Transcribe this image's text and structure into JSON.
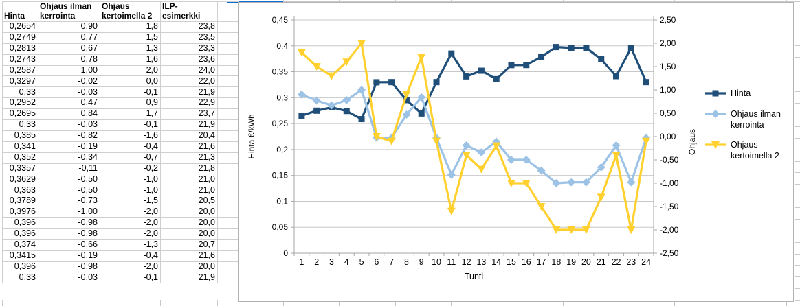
{
  "app": {
    "kind": "spreadsheet-with-embedded-chart"
  },
  "sheet": {
    "grid_color": "#c9c9c9",
    "cursor_color": "#0a6cce"
  },
  "table": {
    "headers": [
      "Hinta",
      "Ohjaus ilman kerrointa",
      "Ohjaus kertoimella 2",
      "ILP-esimerkki"
    ],
    "rows": [
      [
        "0,2654",
        "0,90",
        "1,8",
        "23,8"
      ],
      [
        "0,2749",
        "0,77",
        "1,5",
        "23,5"
      ],
      [
        "0,2813",
        "0,67",
        "1,3",
        "23,3"
      ],
      [
        "0,2743",
        "0,78",
        "1,6",
        "23,6"
      ],
      [
        "0,2587",
        "1,00",
        "2,0",
        "24,0"
      ],
      [
        "0,3297",
        "-0,02",
        "0,0",
        "22,0"
      ],
      [
        "0,33",
        "-0,03",
        "-0,1",
        "21,9"
      ],
      [
        "0,2952",
        "0,47",
        "0,9",
        "22,9"
      ],
      [
        "0,2695",
        "0,84",
        "1,7",
        "23,7"
      ],
      [
        "0,33",
        "-0,03",
        "-0,1",
        "21,9"
      ],
      [
        "0,385",
        "-0,82",
        "-1,6",
        "20,4"
      ],
      [
        "0,341",
        "-0,19",
        "-0,4",
        "21,6"
      ],
      [
        "0,352",
        "-0,34",
        "-0,7",
        "21,3"
      ],
      [
        "0,3357",
        "-0,11",
        "-0,2",
        "21,8"
      ],
      [
        "0,3629",
        "-0,50",
        "-1,0",
        "21,0"
      ],
      [
        "0,363",
        "-0,50",
        "-1,0",
        "21,0"
      ],
      [
        "0,3789",
        "-0,73",
        "-1,5",
        "20,5"
      ],
      [
        "0,3976",
        "-1,00",
        "-2,0",
        "20,0"
      ],
      [
        "0,396",
        "-0,98",
        "-2,0",
        "20,0"
      ],
      [
        "0,396",
        "-0,98",
        "-2,0",
        "20,0"
      ],
      [
        "0,374",
        "-0,66",
        "-1,3",
        "20,7"
      ],
      [
        "0,3415",
        "-0,19",
        "-0,4",
        "21,6"
      ],
      [
        "0,396",
        "-0,98",
        "-2,0",
        "20,0"
      ],
      [
        "0,33",
        "-0,03",
        "-0,1",
        "21,9"
      ]
    ]
  },
  "chart_data": {
    "type": "line",
    "xlabel": "Tunti",
    "ylabel_left": "Hinta €/kWh",
    "ylabel_right": "Ohjaus",
    "categories": [
      1,
      2,
      3,
      4,
      5,
      6,
      7,
      8,
      9,
      10,
      11,
      12,
      13,
      14,
      15,
      16,
      17,
      18,
      19,
      20,
      21,
      22,
      23,
      24
    ],
    "axis_left": {
      "min": 0,
      "max": 0.45,
      "step": 0.05,
      "tick_labels": [
        "0",
        "0,05",
        "0,1",
        "0,15",
        "0,2",
        "0,25",
        "0,3",
        "0,35",
        "0,4",
        "0,45"
      ]
    },
    "axis_right": {
      "min": -2.5,
      "max": 2.5,
      "step": 0.5,
      "tick_labels": [
        "-2,50",
        "-2,00",
        "-1,50",
        "-1,00",
        "-0,50",
        "0,00",
        "0,50",
        "1,00",
        "1,50",
        "2,00",
        "2,50"
      ]
    },
    "grid": "horizontal",
    "legend_position": "right",
    "series": [
      {
        "name": "Hinta",
        "legend_lines": [
          "Hinta"
        ],
        "axis": "left",
        "color": "#1F4E79",
        "marker": "square",
        "values": [
          0.2654,
          0.2749,
          0.2813,
          0.2743,
          0.2587,
          0.3297,
          0.33,
          0.2952,
          0.2695,
          0.33,
          0.385,
          0.341,
          0.352,
          0.3357,
          0.3629,
          0.363,
          0.3789,
          0.3976,
          0.396,
          0.396,
          0.374,
          0.3415,
          0.396,
          0.33
        ]
      },
      {
        "name": "Ohjaus ilman kerrointa",
        "legend_lines": [
          "Ohjaus ilman",
          "kerrointa"
        ],
        "axis": "right",
        "color": "#9CC2E5",
        "marker": "diamond",
        "values": [
          0.9,
          0.77,
          0.67,
          0.78,
          1.0,
          -0.02,
          -0.03,
          0.47,
          0.84,
          -0.03,
          -0.82,
          -0.19,
          -0.34,
          -0.11,
          -0.5,
          -0.5,
          -0.73,
          -1.0,
          -0.98,
          -0.98,
          -0.66,
          -0.19,
          -0.98,
          -0.03
        ]
      },
      {
        "name": "Ohjaus kertoimella 2",
        "legend_lines": [
          "Ohjaus",
          "kertoimella 2"
        ],
        "axis": "right",
        "color": "#FFD02E",
        "marker": "triangle-down",
        "values": [
          1.8,
          1.5,
          1.3,
          1.6,
          2.0,
          0.0,
          -0.1,
          0.9,
          1.7,
          -0.1,
          -1.6,
          -0.4,
          -0.7,
          -0.2,
          -1.0,
          -1.0,
          -1.5,
          -2.0,
          -2.0,
          -2.0,
          -1.3,
          -0.4,
          -2.0,
          -0.1
        ]
      }
    ]
  }
}
